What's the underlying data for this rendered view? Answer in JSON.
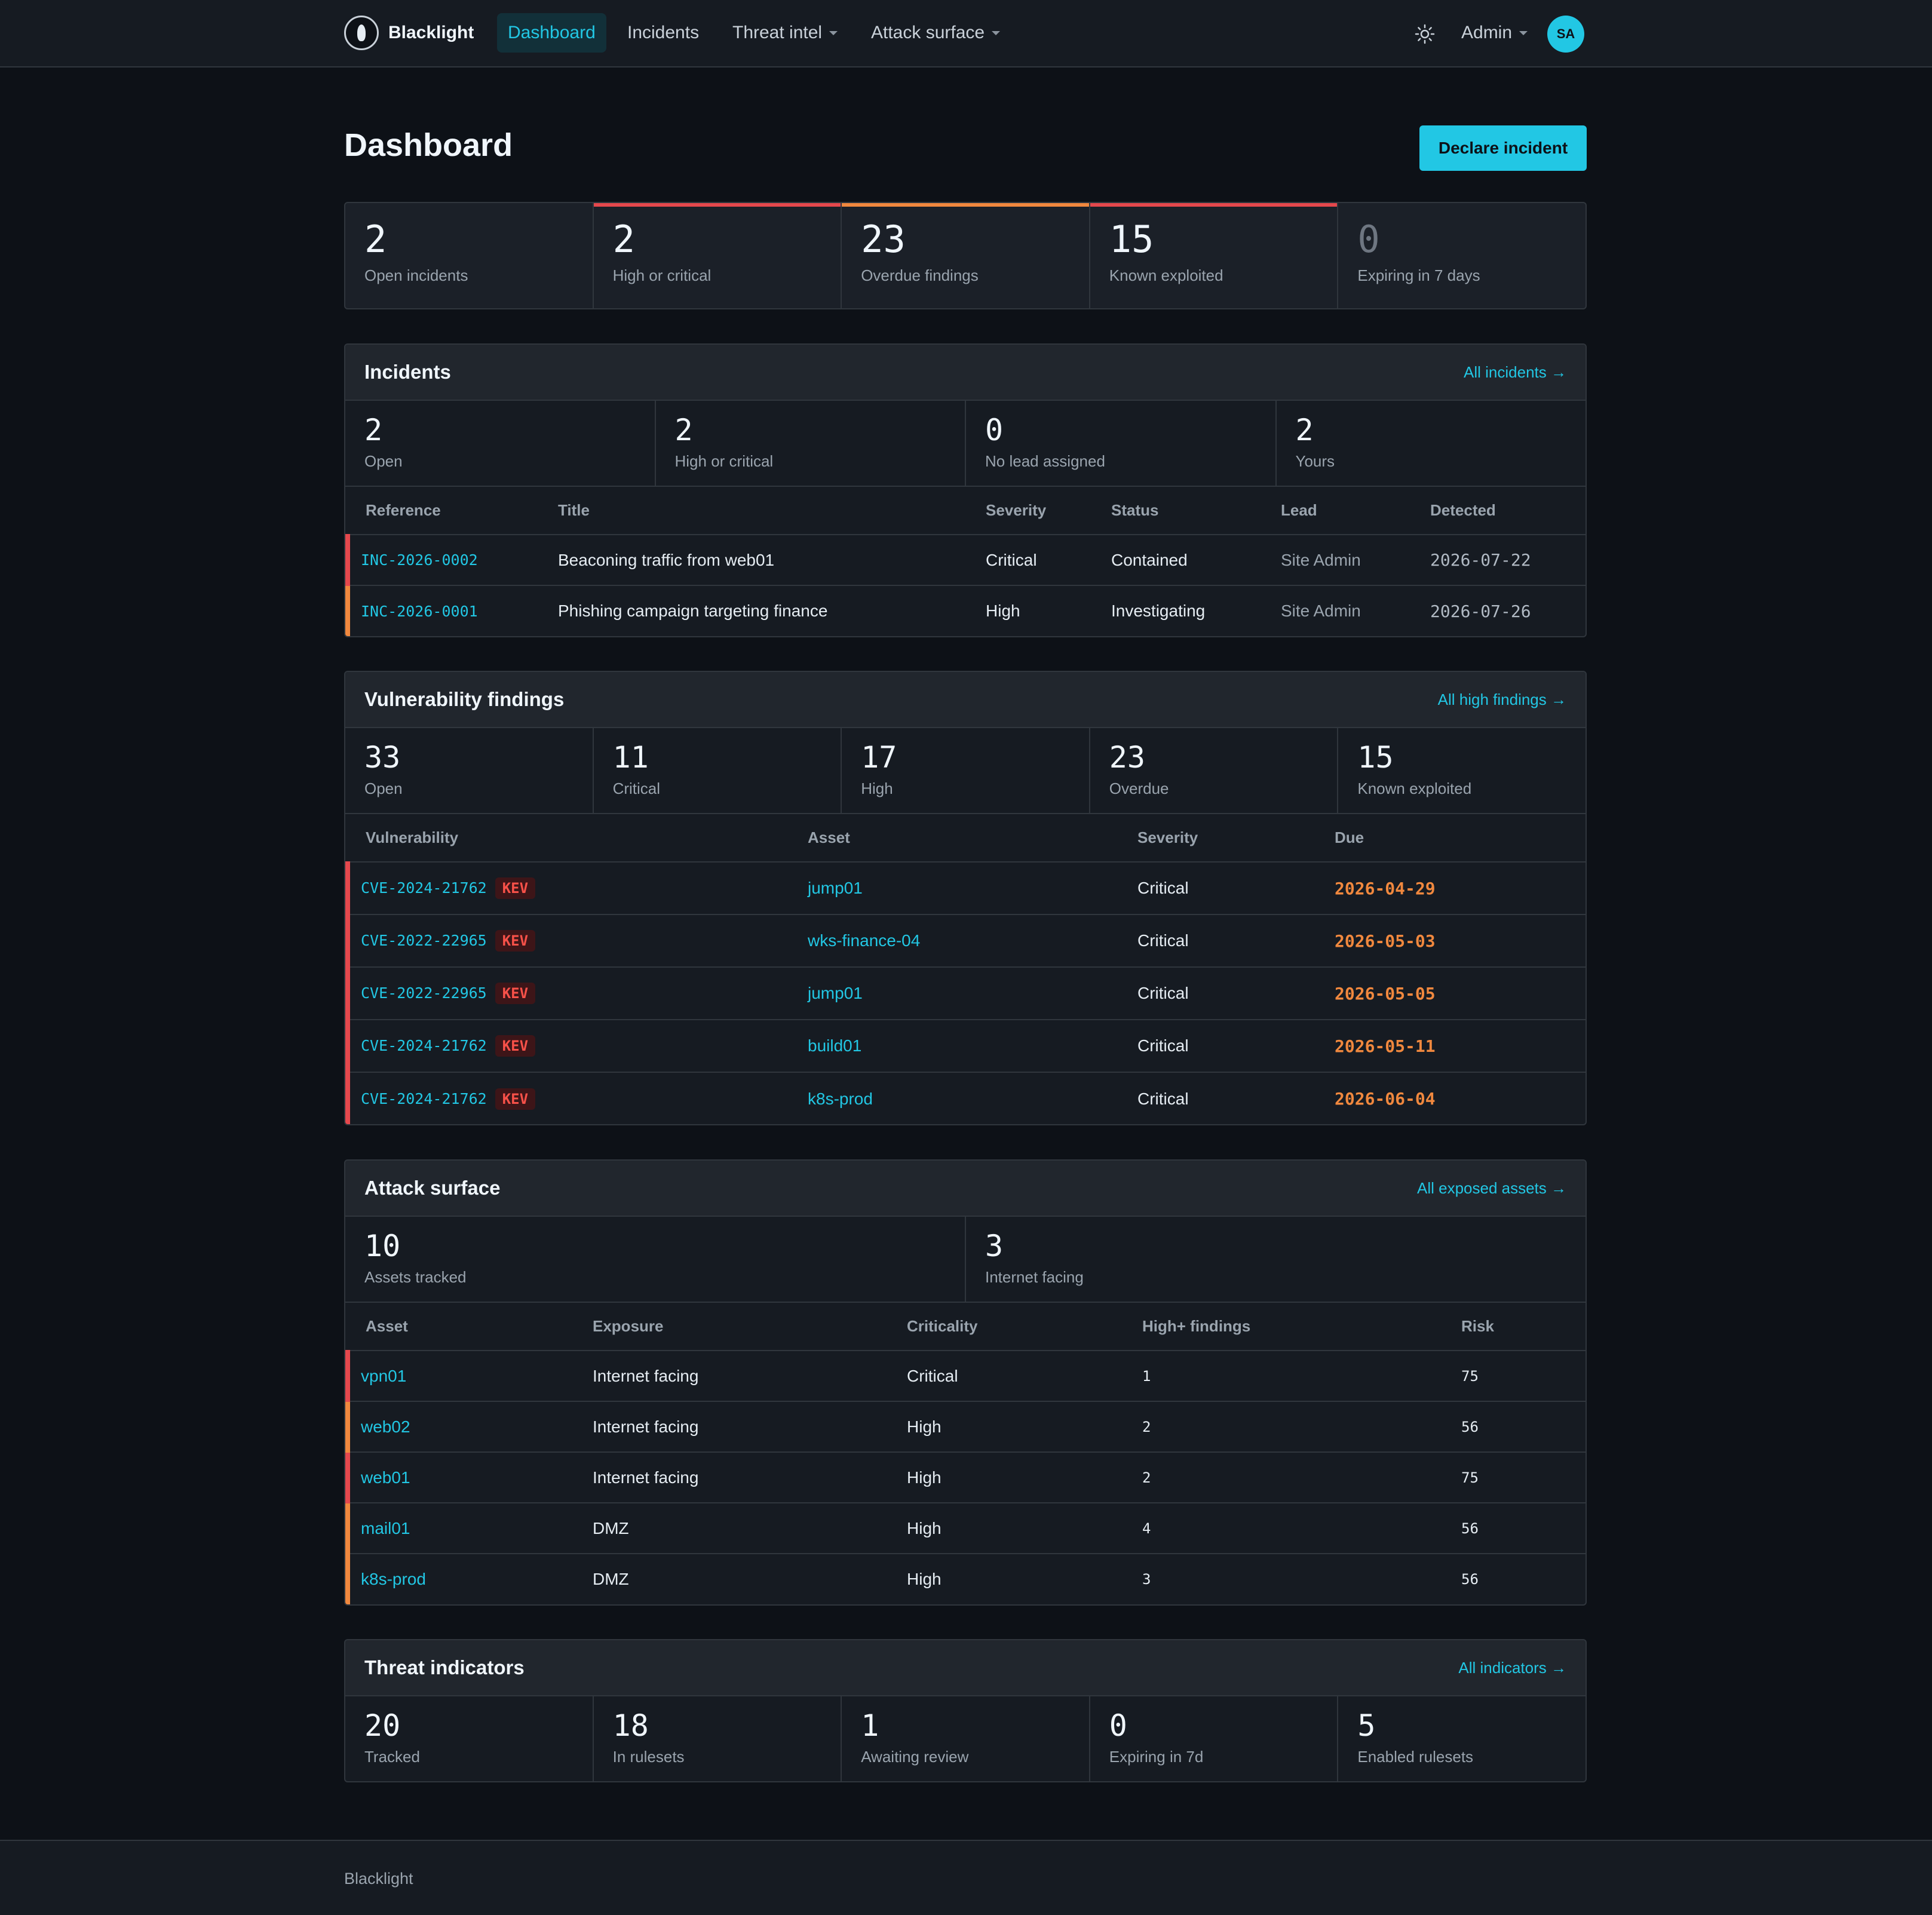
{
  "brand": {
    "name": "Blacklight"
  },
  "nav": {
    "dashboard": "Dashboard",
    "incidents": "Incidents",
    "threat_intel": "Threat intel",
    "attack_surface": "Attack surface",
    "admin": "Admin",
    "avatar_initials": "SA"
  },
  "page": {
    "title": "Dashboard",
    "declare_button": "Declare incident"
  },
  "kpis": [
    {
      "value": "2",
      "label": "Open incidents",
      "accent": ""
    },
    {
      "value": "2",
      "label": "High or critical",
      "accent": "#e5484d"
    },
    {
      "value": "23",
      "label": "Overdue findings",
      "accent": "#f0883e"
    },
    {
      "value": "15",
      "label": "Known exploited",
      "accent": "#e5484d"
    },
    {
      "value": "0",
      "label": "Expiring in 7 days",
      "accent": ""
    }
  ],
  "incidents": {
    "title": "Incidents",
    "link": "All incidents →",
    "stats": [
      {
        "value": "2",
        "label": "Open"
      },
      {
        "value": "2",
        "label": "High or critical"
      },
      {
        "value": "0",
        "label": "No lead assigned"
      },
      {
        "value": "2",
        "label": "Yours"
      }
    ],
    "columns": [
      "Reference",
      "Title",
      "Severity",
      "Status",
      "Lead",
      "Detected"
    ],
    "rows": [
      {
        "reference": "INC-2026-0002",
        "title": "Beaconing traffic from web01",
        "severity": "Critical",
        "status": "Contained",
        "lead": "Site Admin",
        "detected": "2026-07-22"
      },
      {
        "reference": "INC-2026-0001",
        "title": "Phishing campaign targeting finance",
        "severity": "High",
        "status": "Investigating",
        "lead": "Site Admin",
        "detected": "2026-07-26"
      }
    ]
  },
  "vulns": {
    "title": "Vulnerability findings",
    "link": "All high findings →",
    "stats": [
      {
        "value": "33",
        "label": "Open"
      },
      {
        "value": "11",
        "label": "Critical"
      },
      {
        "value": "17",
        "label": "High"
      },
      {
        "value": "23",
        "label": "Overdue"
      },
      {
        "value": "15",
        "label": "Known exploited"
      }
    ],
    "columns": [
      "Vulnerability",
      "Asset",
      "Severity",
      "Due"
    ],
    "badge": "KEV",
    "rows": [
      {
        "cve": "CVE-2024-21762",
        "asset": "jump01",
        "severity": "Critical",
        "due": "2026-04-29"
      },
      {
        "cve": "CVE-2022-22965",
        "asset": "wks-finance-04",
        "severity": "Critical",
        "due": "2026-05-03"
      },
      {
        "cve": "CVE-2022-22965",
        "asset": "jump01",
        "severity": "Critical",
        "due": "2026-05-05"
      },
      {
        "cve": "CVE-2024-21762",
        "asset": "build01",
        "severity": "Critical",
        "due": "2026-05-11"
      },
      {
        "cve": "CVE-2024-21762",
        "asset": "k8s-prod",
        "severity": "Critical",
        "due": "2026-06-04"
      }
    ]
  },
  "surface": {
    "title": "Attack surface",
    "link": "All exposed assets →",
    "stats": [
      {
        "value": "10",
        "label": "Assets tracked"
      },
      {
        "value": "3",
        "label": "Internet facing"
      }
    ],
    "columns": [
      "Asset",
      "Exposure",
      "Criticality",
      "High+ findings",
      "Risk"
    ],
    "rows": [
      {
        "asset": "vpn01",
        "exposure": "Internet facing",
        "criticality": "Critical",
        "findings": "1",
        "risk": "75"
      },
      {
        "asset": "web02",
        "exposure": "Internet facing",
        "criticality": "High",
        "findings": "2",
        "risk": "56"
      },
      {
        "asset": "web01",
        "exposure": "Internet facing",
        "criticality": "High",
        "findings": "2",
        "risk": "75"
      },
      {
        "asset": "mail01",
        "exposure": "DMZ",
        "criticality": "High",
        "findings": "4",
        "risk": "56"
      },
      {
        "asset": "k8s-prod",
        "exposure": "DMZ",
        "criticality": "High",
        "findings": "3",
        "risk": "56"
      }
    ]
  },
  "threats": {
    "title": "Threat indicators",
    "link": "All indicators →",
    "stats": [
      {
        "value": "20",
        "label": "Tracked"
      },
      {
        "value": "18",
        "label": "In rulesets"
      },
      {
        "value": "1",
        "label": "Awaiting review"
      },
      {
        "value": "0",
        "label": "Expiring in 7d"
      },
      {
        "value": "5",
        "label": "Enabled rulesets"
      }
    ]
  },
  "footer": {
    "text": "Blacklight"
  },
  "colors": {
    "accent": "#22c7e4",
    "critical": "#e5484d",
    "high": "#f0883e",
    "kev_bg": "#3d1518",
    "kev_text": "#f85149"
  },
  "icons": {
    "brand": "lightbulb-logo-icon",
    "theme": "sun-icon",
    "caret": "chevron-down-icon"
  }
}
